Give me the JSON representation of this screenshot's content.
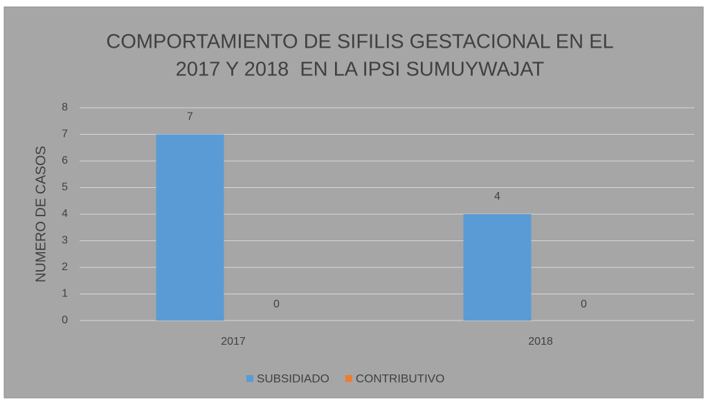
{
  "chart_data": {
    "type": "bar",
    "title": [
      "COMPORTAMIENTO DE SIFILIS GESTACIONAL EN EL",
      "2017 Y 2018  EN LA IPSI SUMUYWAJAT"
    ],
    "y_label": "NUMERO DE CASOS",
    "categories": [
      "2017",
      "2018"
    ],
    "series": [
      {
        "name": "SUBSIDIADO",
        "color": "#5b9bd5",
        "values": [
          7,
          4
        ]
      },
      {
        "name": "CONTRIBUTIVO",
        "color": "#ed7d31",
        "values": [
          0,
          0
        ]
      }
    ],
    "ylim": [
      0,
      8
    ],
    "yticks": [
      0,
      1,
      2,
      3,
      4,
      5,
      6,
      7,
      8
    ],
    "grid": true,
    "legend": "bottom"
  }
}
